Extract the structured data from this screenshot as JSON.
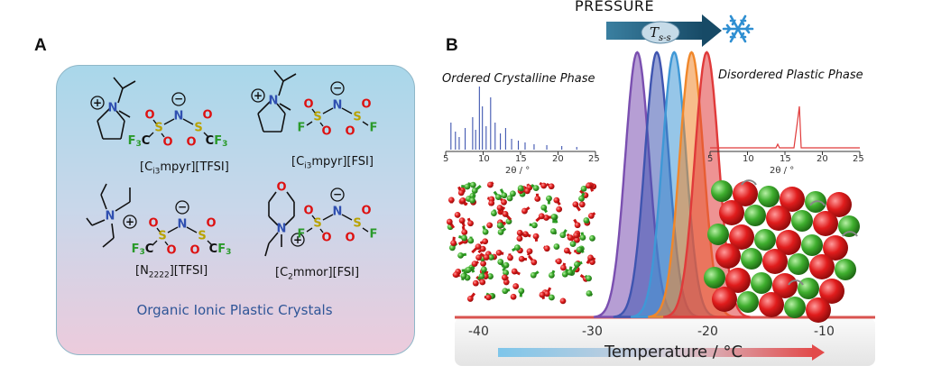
{
  "panel_a": {
    "label": "A",
    "salts": [
      {
        "name_pre": "[C",
        "name_sub": "i3",
        "name_post": "mpyr][TFSI]"
      },
      {
        "name_pre": "[C",
        "name_sub": "i3",
        "name_post": "mpyr][FSI]"
      },
      {
        "name_pre": "[N",
        "name_sub": "2222",
        "name_post": "][TFSI]"
      },
      {
        "name_pre": "[C",
        "name_sub": "2",
        "name_post": "mmor][FSI]"
      }
    ],
    "caption": "Organic Ionic Plastic Crystals",
    "atoms": {
      "N": "N",
      "S": "S",
      "O": "O",
      "F": "F",
      "CF3_pre": "F",
      "CF3_sub": "3",
      "C": "C",
      "minus": "−",
      "plus": "+"
    }
  },
  "panel_b": {
    "label": "B",
    "pressure": "PRESSURE",
    "transition_pre": "T",
    "transition_sub": "s-s",
    "left_phase": "Ordered Crystalline Phase",
    "right_phase": "Disordered Plastic Phase",
    "xrd_ticks": [
      "5",
      "10",
      "15",
      "20",
      "25"
    ],
    "xrd_xlabel": "2θ / °",
    "temp_ticks": [
      "-40",
      "-30",
      "-20",
      "-10"
    ],
    "temp_label": "Temperature / °C",
    "peak_colors": [
      "#7a4fb0",
      "#3f55b0",
      "#3f98d6",
      "#f0872a",
      "#e03a3a"
    ],
    "peak_centers": [
      -27.2,
      -25.4,
      -23.8,
      -22.2,
      -20.8
    ]
  }
}
